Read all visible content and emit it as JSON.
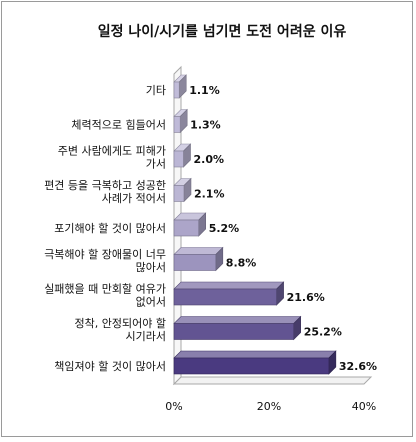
{
  "chart_data": {
    "type": "bar",
    "orientation": "horizontal",
    "title": "일정 나이/시기를 넘기면 도전 어려운 이유",
    "categories": [
      [
        "기타"
      ],
      [
        "체력적으로 힘들어서"
      ],
      [
        "주변 사람에게도 피해가",
        "가서"
      ],
      [
        "편견 등을 극복하고 성공한",
        "사례가 적어서"
      ],
      [
        "포기해야 할 것이 많아서"
      ],
      [
        "극복해야 할 장애물이 너무",
        "많아서"
      ],
      [
        "실패했을 때 만회할 여유가",
        "없어서"
      ],
      [
        "정착, 안정되어야 할",
        "시기라서"
      ],
      [
        "책임져야 할 것이 많아서"
      ]
    ],
    "values": [
      1.1,
      1.3,
      2.0,
      2.1,
      5.2,
      8.8,
      21.6,
      25.2,
      32.6
    ],
    "value_labels": [
      "1.1%",
      "1.3%",
      "2.0%",
      "2.1%",
      "5.2%",
      "8.8%",
      "21.6%",
      "25.2%",
      "32.6%"
    ],
    "xlim": [
      0,
      40
    ],
    "xticks": [
      0,
      20,
      40
    ],
    "xtick_labels": [
      "0%",
      "20%",
      "40%"
    ],
    "colors": {
      "light": "#c9c5df",
      "dark": "#4a3a80",
      "chart_border": "#a8a8a8"
    }
  }
}
